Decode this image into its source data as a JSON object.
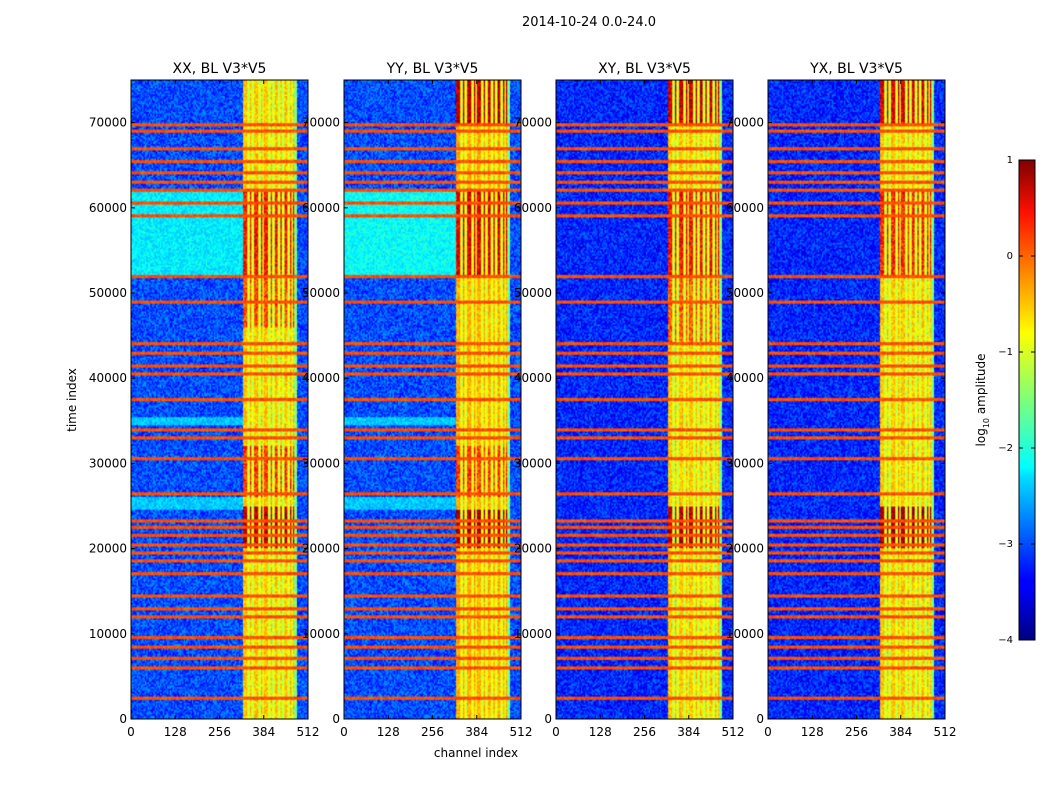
{
  "figure": {
    "suptitle": "2014-10-24 0.0-24.0",
    "xlabel": "channel index",
    "ylabel": "time index"
  },
  "colorbar": {
    "label": "log10 amplitude",
    "label_base": "log",
    "label_sub": "10",
    "label_rest": " amplitude",
    "range": [
      -4,
      1
    ],
    "ticks": [
      "1",
      "0",
      "−1",
      "−2",
      "−3",
      "−4"
    ],
    "tick_values": [
      1,
      0,
      -1,
      -2,
      -3,
      -4
    ],
    "colormap": "jet"
  },
  "chart_data": [
    {
      "type": "heatmap",
      "title": "XX, BL V3*V5",
      "xlabel": "channel index",
      "ylabel": "time index",
      "xlim": [
        0,
        512
      ],
      "ylim": [
        0,
        75000
      ],
      "xticks": [
        "0",
        "128",
        "256",
        "384",
        "512"
      ],
      "xtick_values": [
        0,
        128,
        256,
        384,
        512
      ],
      "yticks": [
        "0",
        "10000",
        "20000",
        "30000",
        "40000",
        "50000",
        "60000",
        "70000"
      ],
      "ytick_values": [
        0,
        10000,
        20000,
        30000,
        40000,
        50000,
        60000,
        70000
      ],
      "value_scale": "log10 amplitude",
      "background_level": -3.0,
      "band_channels": [
        325,
        470
      ],
      "band_level": -0.6,
      "hot_segments": [
        [
          52000,
          62000,
          0.5
        ],
        [
          46000,
          52000,
          0.2
        ],
        [
          20000,
          25000,
          0.9
        ],
        [
          26000,
          32000,
          0.3
        ]
      ],
      "cyan_segments": [
        [
          52000,
          62000,
          -2.2
        ],
        [
          24500,
          26000,
          -2.4
        ],
        [
          34500,
          35500,
          -2.4
        ]
      ],
      "rfi_rows": [
        2500,
        6000,
        7200,
        8400,
        9600,
        12000,
        13000,
        14500,
        17000,
        18500,
        19500,
        20500,
        21500,
        22500,
        23300,
        26500,
        30500,
        33000,
        34000,
        37500,
        40500,
        41500,
        43000,
        44000,
        49000,
        52000,
        59000,
        60500,
        62000,
        63000,
        64200,
        65500,
        67000,
        69000,
        69800
      ]
    },
    {
      "type": "heatmap",
      "title": "YY, BL V3*V5",
      "xlabel": "channel index",
      "ylabel": "time index",
      "xlim": [
        0,
        512
      ],
      "ylim": [
        0,
        75000
      ],
      "xticks": [
        "0",
        "128",
        "256",
        "384",
        "512"
      ],
      "xtick_values": [
        0,
        128,
        256,
        384,
        512
      ],
      "yticks": [
        "0",
        "10000",
        "20000",
        "30000",
        "40000",
        "50000",
        "60000",
        "70000"
      ],
      "ytick_values": [
        0,
        10000,
        20000,
        30000,
        40000,
        50000,
        60000,
        70000
      ],
      "value_scale": "log10 amplitude",
      "background_level": -3.0,
      "band_channels": [
        325,
        470
      ],
      "band_level": -0.5,
      "hot_segments": [
        [
          52000,
          62000,
          0.7
        ],
        [
          70000,
          75000,
          0.9
        ],
        [
          20000,
          24500,
          1.0
        ],
        [
          26000,
          32000,
          0.3
        ]
      ],
      "cyan_segments": [
        [
          52000,
          62000,
          -2.1
        ],
        [
          24500,
          26000,
          -2.4
        ],
        [
          34500,
          35500,
          -2.4
        ]
      ],
      "rfi_rows": [
        2500,
        6000,
        7200,
        8400,
        9600,
        12000,
        13000,
        14500,
        17000,
        18500,
        19500,
        20500,
        21500,
        22500,
        23300,
        26500,
        30500,
        33000,
        34000,
        37500,
        40500,
        41500,
        43000,
        44000,
        49000,
        52000,
        59000,
        60500,
        62000,
        63000,
        64200,
        65500,
        67000,
        69000,
        69800
      ]
    },
    {
      "type": "heatmap",
      "title": "XY, BL V3*V5",
      "xlabel": "channel index",
      "ylabel": "time index",
      "xlim": [
        0,
        512
      ],
      "ylim": [
        0,
        75000
      ],
      "xticks": [
        "0",
        "128",
        "256",
        "384",
        "512"
      ],
      "xtick_values": [
        0,
        128,
        256,
        384,
        512
      ],
      "yticks": [
        "0",
        "10000",
        "20000",
        "30000",
        "40000",
        "50000",
        "60000",
        "70000"
      ],
      "ytick_values": [
        0,
        10000,
        20000,
        30000,
        40000,
        50000,
        60000,
        70000
      ],
      "value_scale": "log10 amplitude",
      "background_level": -3.2,
      "band_channels": [
        325,
        470
      ],
      "band_level": -0.6,
      "hot_segments": [
        [
          52000,
          62000,
          0.5
        ],
        [
          70000,
          75000,
          0.8
        ],
        [
          20000,
          25000,
          0.9
        ],
        [
          44000,
          52000,
          0.1
        ]
      ],
      "cyan_segments": [],
      "rfi_rows": [
        2500,
        6000,
        7200,
        8400,
        9600,
        12000,
        13000,
        14500,
        17000,
        18500,
        19500,
        20500,
        21500,
        22500,
        23300,
        26500,
        30500,
        33000,
        34000,
        37500,
        40500,
        41500,
        43000,
        44000,
        49000,
        52000,
        59000,
        60500,
        62000,
        63000,
        64200,
        65500,
        67000,
        69000,
        69800
      ]
    },
    {
      "type": "heatmap",
      "title": "YX, BL V3*V5",
      "xlabel": "channel index",
      "ylabel": "time index",
      "xlim": [
        0,
        512
      ],
      "ylim": [
        0,
        75000
      ],
      "xticks": [
        "0",
        "128",
        "256",
        "384",
        "512"
      ],
      "xtick_values": [
        0,
        128,
        256,
        384,
        512
      ],
      "yticks": [
        "0",
        "10000",
        "20000",
        "30000",
        "40000",
        "50000",
        "60000",
        "70000"
      ],
      "ytick_values": [
        0,
        10000,
        20000,
        30000,
        40000,
        50000,
        60000,
        70000
      ],
      "value_scale": "log10 amplitude",
      "background_level": -3.2,
      "band_channels": [
        325,
        470
      ],
      "band_level": -0.6,
      "hot_segments": [
        [
          52000,
          62000,
          0.4
        ],
        [
          70000,
          75000,
          0.7
        ],
        [
          20000,
          25000,
          1.0
        ]
      ],
      "cyan_segments": [],
      "rfi_rows": [
        2500,
        6000,
        7200,
        8400,
        9600,
        12000,
        13000,
        14500,
        17000,
        18500,
        19500,
        20500,
        21500,
        22500,
        23300,
        26500,
        30500,
        33000,
        34000,
        37500,
        40500,
        41500,
        43000,
        44000,
        49000,
        52000,
        59000,
        60500,
        62000,
        63000,
        64200,
        65500,
        67000,
        69000,
        69800
      ]
    }
  ]
}
